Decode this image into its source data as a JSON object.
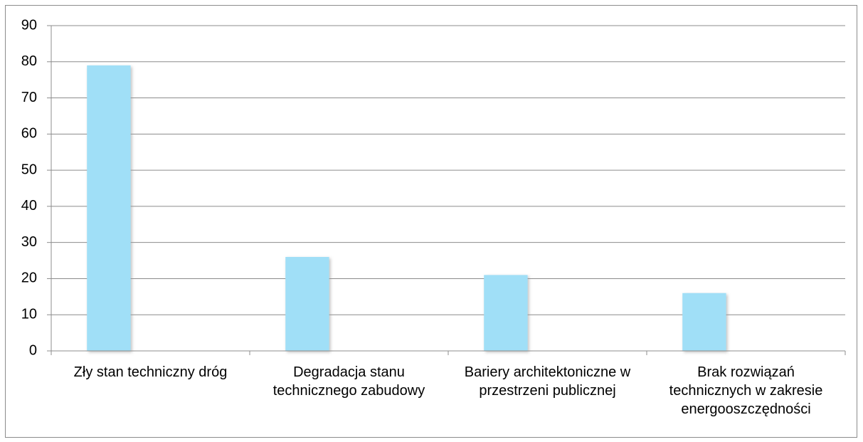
{
  "chart_data": {
    "type": "bar",
    "categories": [
      "Zły stan techniczny dróg",
      "Degradacja stanu technicznego zabudowy",
      "Bariery architektoniczne w przestrzeni publicznej",
      "Brak rozwiązań technicznych w zakresie energooszczędności"
    ],
    "values": [
      79,
      26,
      21,
      16
    ],
    "color": "#a0dff7",
    "ylim": [
      0,
      90
    ],
    "yticks": [
      0,
      10,
      20,
      30,
      40,
      50,
      60,
      70,
      80,
      90
    ],
    "grid": true
  }
}
